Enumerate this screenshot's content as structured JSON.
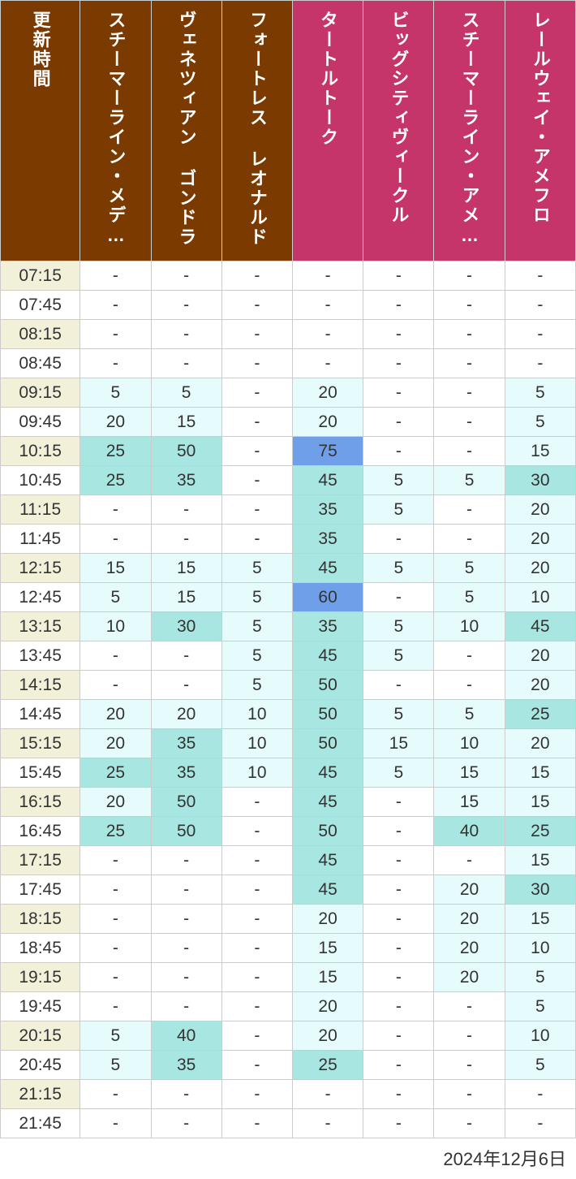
{
  "date_label": "2024年12月6日",
  "colors": {
    "header_brown": "#7a3a00",
    "header_pink": "#c5356a",
    "time_row_alt": "#f2f0d8",
    "time_row_base": "#ffffff",
    "cell_none": "#ffffff",
    "cell_light": "#e6fbfb",
    "cell_mid": "#a8e6e1",
    "cell_blue": "#6f9fe8",
    "border": "#cccccc",
    "text": "#333333",
    "header_text": "#ffffff"
  },
  "columns": [
    {
      "key": "time",
      "label": "更新時間",
      "header_color": "#7a3a00"
    },
    {
      "key": "c1",
      "label": "スチーマーライン・メデ…",
      "header_color": "#7a3a00"
    },
    {
      "key": "c2",
      "label": "ヴェネツィアン ゴンドラ",
      "header_color": "#7a3a00"
    },
    {
      "key": "c3",
      "label": "フォートレス レオナルド…",
      "header_color": "#7a3a00"
    },
    {
      "key": "c4",
      "label": "タートルトーク",
      "header_color": "#c5356a"
    },
    {
      "key": "c5",
      "label": "ビッグシティヴィークル",
      "header_color": "#c5356a"
    },
    {
      "key": "c6",
      "label": "スチーマーライン・アメ…",
      "header_color": "#c5356a"
    },
    {
      "key": "c7",
      "label": "レールウェイ・アメフロ",
      "header_color": "#c5356a"
    }
  ],
  "cell_thresholds": {
    "light_max": 24,
    "mid_max": 59
  },
  "times": [
    "07:15",
    "07:45",
    "08:15",
    "08:45",
    "09:15",
    "09:45",
    "10:15",
    "10:45",
    "11:15",
    "11:45",
    "12:15",
    "12:45",
    "13:15",
    "13:45",
    "14:15",
    "14:45",
    "15:15",
    "15:45",
    "16:15",
    "16:45",
    "17:15",
    "17:45",
    "18:15",
    "18:45",
    "19:15",
    "19:45",
    "20:15",
    "20:45",
    "21:15",
    "21:45"
  ],
  "rows": [
    [
      "-",
      "-",
      "-",
      "-",
      "-",
      "-",
      "-"
    ],
    [
      "-",
      "-",
      "-",
      "-",
      "-",
      "-",
      "-"
    ],
    [
      "-",
      "-",
      "-",
      "-",
      "-",
      "-",
      "-"
    ],
    [
      "-",
      "-",
      "-",
      "-",
      "-",
      "-",
      "-"
    ],
    [
      5,
      5,
      "-",
      20,
      "-",
      "-",
      5
    ],
    [
      20,
      15,
      "-",
      20,
      "-",
      "-",
      5
    ],
    [
      25,
      50,
      "-",
      75,
      "-",
      "-",
      15
    ],
    [
      25,
      35,
      "-",
      45,
      5,
      5,
      30
    ],
    [
      "-",
      "-",
      "-",
      35,
      5,
      "-",
      20
    ],
    [
      "-",
      "-",
      "-",
      35,
      "-",
      "-",
      20
    ],
    [
      15,
      15,
      5,
      45,
      5,
      5,
      20
    ],
    [
      5,
      15,
      5,
      60,
      "-",
      5,
      10
    ],
    [
      10,
      30,
      5,
      35,
      5,
      10,
      45
    ],
    [
      "-",
      "-",
      5,
      45,
      5,
      "-",
      20
    ],
    [
      "-",
      "-",
      5,
      50,
      "-",
      "-",
      20
    ],
    [
      20,
      20,
      10,
      50,
      5,
      5,
      25
    ],
    [
      20,
      35,
      10,
      50,
      15,
      10,
      20
    ],
    [
      25,
      35,
      10,
      45,
      5,
      15,
      15
    ],
    [
      20,
      50,
      "-",
      45,
      "-",
      15,
      15
    ],
    [
      25,
      50,
      "-",
      50,
      "-",
      40,
      25
    ],
    [
      "-",
      "-",
      "-",
      45,
      "-",
      "-",
      15
    ],
    [
      "-",
      "-",
      "-",
      45,
      "-",
      20,
      30
    ],
    [
      "-",
      "-",
      "-",
      20,
      "-",
      20,
      15
    ],
    [
      "-",
      "-",
      "-",
      15,
      "-",
      20,
      10
    ],
    [
      "-",
      "-",
      "-",
      15,
      "-",
      20,
      5
    ],
    [
      "-",
      "-",
      "-",
      20,
      "-",
      "-",
      5
    ],
    [
      5,
      40,
      "-",
      20,
      "-",
      "-",
      10
    ],
    [
      5,
      35,
      "-",
      25,
      "-",
      "-",
      5
    ],
    [
      "-",
      "-",
      "-",
      "-",
      "-",
      "-",
      "-"
    ],
    [
      "-",
      "-",
      "-",
      "-",
      "-",
      "-",
      "-"
    ]
  ]
}
